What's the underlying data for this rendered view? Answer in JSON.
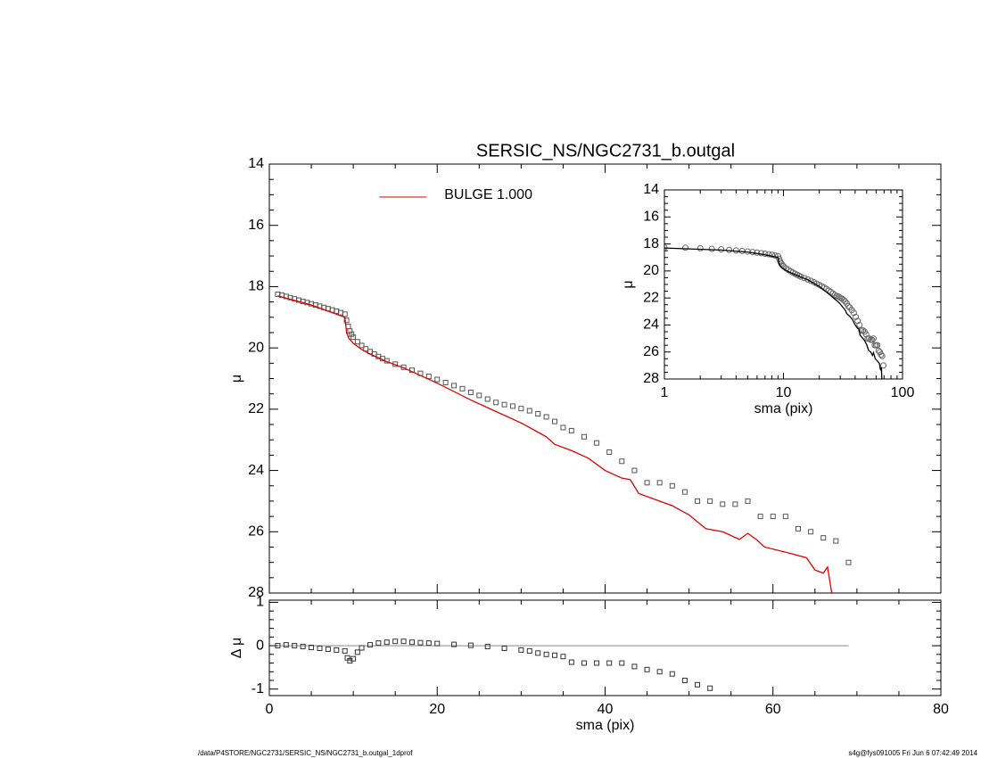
{
  "chart_data": [
    {
      "type": "line",
      "title": "SERSIC_NS/NGC2731_b.outgal",
      "ylabel": "μ",
      "xlim": [
        0,
        80
      ],
      "xticks": [
        0,
        20,
        40,
        60,
        80
      ],
      "xtick_labels": false,
      "ylim": [
        28,
        14
      ],
      "yticks": [
        14,
        16,
        18,
        20,
        22,
        24,
        26,
        28
      ],
      "legend": "top",
      "series": [
        {
          "style": "markers",
          "marker": "square",
          "color": "#555555",
          "x": [
            1,
            1.5,
            2,
            2.5,
            3,
            3.5,
            4,
            4.5,
            5,
            5.5,
            6,
            6.5,
            7,
            7.5,
            8,
            8.5,
            9,
            9.2,
            9.4,
            9.6,
            9.8,
            10,
            10.5,
            11,
            11.5,
            12,
            12.5,
            13,
            13.5,
            14,
            15,
            16,
            17,
            18,
            19,
            20,
            21,
            22,
            23,
            24,
            25,
            26,
            27,
            28,
            29,
            30,
            31,
            32,
            33,
            34,
            35,
            36,
            37.5,
            39,
            40.5,
            42,
            43.5,
            45,
            46.5,
            48,
            49.5,
            51,
            52.5,
            54,
            55.5,
            57,
            58.5,
            60,
            61.5,
            63,
            64.5,
            66,
            67.5,
            69
          ],
          "values": [
            18.25,
            18.28,
            18.32,
            18.36,
            18.4,
            18.44,
            18.48,
            18.52,
            18.56,
            18.6,
            18.64,
            18.68,
            18.72,
            18.76,
            18.8,
            18.85,
            18.9,
            19.1,
            19.3,
            19.45,
            19.55,
            19.65,
            19.8,
            19.92,
            20.03,
            20.12,
            20.2,
            20.28,
            20.35,
            20.42,
            20.53,
            20.63,
            20.73,
            20.83,
            20.93,
            21.03,
            21.13,
            21.23,
            21.33,
            21.45,
            21.55,
            21.67,
            21.78,
            21.85,
            21.9,
            21.98,
            22.05,
            22.15,
            22.25,
            22.4,
            22.6,
            22.7,
            22.9,
            23.1,
            23.4,
            23.7,
            24.0,
            24.4,
            24.4,
            24.5,
            24.7,
            25.0,
            25.0,
            25.1,
            25.1,
            25.0,
            25.5,
            25.5,
            25.5,
            25.9,
            26.0,
            26.2,
            26.3,
            27.0
          ]
        },
        {
          "style": "line",
          "name": "BULGE  1.000",
          "color": "#e00000",
          "x": [
            1,
            3,
            5,
            7,
            9,
            9.2,
            9.5,
            10,
            11,
            12,
            14,
            16,
            20,
            24,
            28,
            30,
            32,
            33,
            34,
            36,
            38,
            40,
            42,
            43,
            44,
            46,
            48,
            50,
            52,
            54,
            56,
            57,
            58,
            59,
            62,
            64,
            65,
            66,
            66.5,
            67
          ],
          "values": [
            18.3,
            18.45,
            18.6,
            18.8,
            19.0,
            19.5,
            19.7,
            19.85,
            20.05,
            20.2,
            20.45,
            20.65,
            21.15,
            21.7,
            22.2,
            22.45,
            22.75,
            22.9,
            23.15,
            23.35,
            23.6,
            24.0,
            24.25,
            24.3,
            24.75,
            24.95,
            25.15,
            25.45,
            25.9,
            26.0,
            26.25,
            26.05,
            26.25,
            26.5,
            26.7,
            26.85,
            27.25,
            27.35,
            27.15,
            28.0
          ]
        }
      ]
    },
    {
      "type": "line",
      "ylabel": "Δ μ",
      "xlabel": "sma (pix)",
      "xlim": [
        0,
        80
      ],
      "xticks": [
        0,
        20,
        40,
        60,
        80
      ],
      "ylim": [
        -1.15,
        1.05
      ],
      "yticks": [
        -1,
        0,
        1
      ],
      "series": [
        {
          "style": "line",
          "color": "#777777",
          "x": [
            1,
            69
          ],
          "values": [
            0,
            0
          ]
        },
        {
          "style": "markers",
          "marker": "square",
          "color": "#333333",
          "x": [
            1,
            2,
            3,
            4,
            5,
            6,
            7,
            8,
            9,
            9.3,
            9.6,
            10,
            10.5,
            11,
            12,
            13,
            14,
            15,
            16,
            17,
            18,
            19,
            20,
            22,
            24,
            26,
            28,
            30,
            31,
            32,
            33,
            34,
            35,
            36,
            37.5,
            39,
            40.5,
            42,
            43.5,
            45,
            46.5,
            48,
            49.5,
            51,
            52.5
          ],
          "values": [
            0,
            0.02,
            0,
            -0.02,
            -0.04,
            -0.06,
            -0.08,
            -0.1,
            -0.12,
            -0.28,
            -0.35,
            -0.3,
            -0.15,
            -0.05,
            0.02,
            0.06,
            0.08,
            0.1,
            0.1,
            0.08,
            0.07,
            0.06,
            0.05,
            0.03,
            0.01,
            -0.02,
            -0.06,
            -0.1,
            -0.12,
            -0.17,
            -0.2,
            -0.22,
            -0.25,
            -0.38,
            -0.4,
            -0.4,
            -0.4,
            -0.4,
            -0.48,
            -0.55,
            -0.6,
            -0.65,
            -0.8,
            -0.9,
            -0.98
          ]
        }
      ]
    },
    {
      "type": "line",
      "ylabel": "μ",
      "xlabel": "sma (pix)",
      "xscale": "log",
      "xlim": [
        1,
        100
      ],
      "xticks": [
        1,
        10,
        100
      ],
      "ylim": [
        28,
        14
      ],
      "yticks": [
        14,
        16,
        18,
        20,
        22,
        24,
        26,
        28
      ],
      "series": [
        {
          "style": "markers",
          "marker": "circle",
          "color": "#666666",
          "x": [
            1,
            1.5,
            2,
            2.5,
            3,
            3.5,
            4,
            4.5,
            5,
            5.5,
            6,
            6.5,
            7,
            7.5,
            8,
            8.5,
            9,
            9.2,
            9.4,
            9.6,
            9.8,
            10,
            10.5,
            11,
            11.5,
            12,
            12.5,
            13,
            13.5,
            14,
            15,
            16,
            17,
            18,
            19,
            20,
            21,
            22,
            23,
            24,
            25,
            26,
            27,
            28,
            29,
            30,
            31,
            32,
            33,
            34,
            35,
            36,
            37.5,
            39,
            40.5,
            42,
            43.5,
            45,
            46.5,
            48,
            49.5,
            51,
            52.5,
            54,
            55.5,
            57,
            58.5,
            60,
            61.5,
            63,
            64.5,
            66,
            67.5,
            69
          ],
          "values": [
            18.25,
            18.28,
            18.32,
            18.36,
            18.4,
            18.44,
            18.48,
            18.52,
            18.56,
            18.6,
            18.64,
            18.68,
            18.72,
            18.76,
            18.8,
            18.85,
            18.9,
            19.1,
            19.3,
            19.45,
            19.55,
            19.65,
            19.8,
            19.92,
            20.03,
            20.12,
            20.2,
            20.28,
            20.35,
            20.42,
            20.53,
            20.63,
            20.73,
            20.83,
            20.93,
            21.03,
            21.13,
            21.23,
            21.33,
            21.45,
            21.55,
            21.67,
            21.78,
            21.85,
            21.9,
            21.98,
            22.05,
            22.15,
            22.25,
            22.4,
            22.6,
            22.7,
            22.9,
            23.1,
            23.4,
            23.7,
            24.0,
            24.4,
            24.4,
            24.5,
            24.7,
            25.0,
            25.0,
            25.1,
            25.1,
            25.0,
            25.5,
            25.5,
            25.5,
            25.9,
            26.0,
            26.2,
            26.3,
            27.0
          ]
        },
        {
          "style": "line",
          "color": "#000000",
          "x": [
            1,
            3,
            5,
            7,
            9,
            9.2,
            9.5,
            10,
            11,
            12,
            14,
            16,
            20,
            24,
            28,
            30,
            32,
            33,
            34,
            36,
            38,
            40,
            42,
            43,
            44,
            46,
            48,
            50,
            52,
            54,
            56,
            57,
            58,
            59,
            62,
            64,
            65,
            66,
            66.5,
            67
          ],
          "values": [
            18.3,
            18.45,
            18.6,
            18.8,
            19.0,
            19.5,
            19.7,
            19.85,
            20.05,
            20.2,
            20.45,
            20.65,
            21.15,
            21.7,
            22.2,
            22.45,
            22.75,
            22.9,
            23.15,
            23.35,
            23.6,
            24.0,
            24.25,
            24.3,
            24.75,
            24.95,
            25.15,
            25.45,
            25.9,
            26.0,
            26.25,
            26.05,
            26.25,
            26.5,
            26.7,
            26.85,
            27.25,
            27.35,
            27.15,
            28.0
          ]
        }
      ]
    }
  ],
  "footer": {
    "left": "/data/P4STORE/NGC2731/SERSIC_NS/NGC2731_b.outgal_1dprof",
    "right": "s4g@fys091005  Fri Jun  6 07:42:49 2014"
  }
}
